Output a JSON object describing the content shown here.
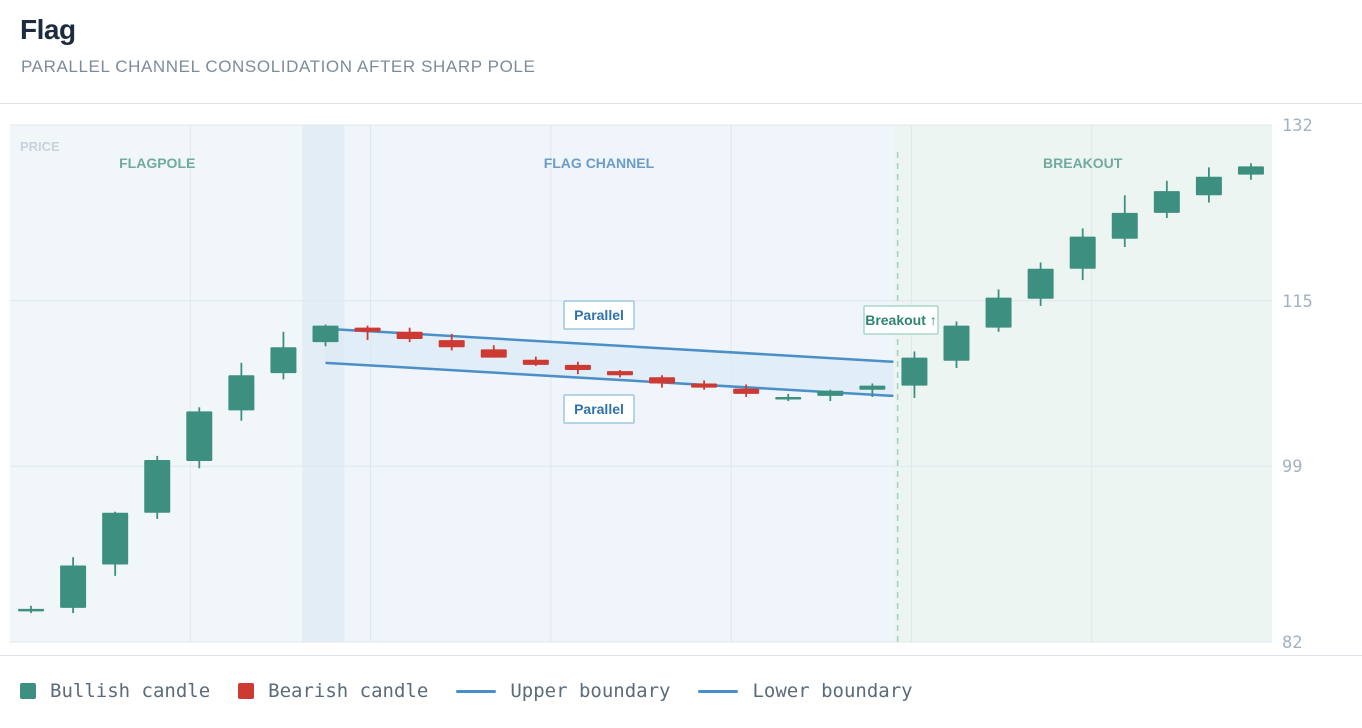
{
  "header": {
    "title": "Flag",
    "subtitle": "PARALLEL CHANNEL CONSOLIDATION AFTER SHARP POLE"
  },
  "colors": {
    "bullish": "#3d9080",
    "bearish": "#cc3a33",
    "boundary": "#4a8fc8",
    "grid": "#dfe7ee"
  },
  "legend": {
    "bullish": "Bullish candle",
    "bearish": "Bearish candle",
    "upper": "Upper boundary",
    "lower": "Lower boundary"
  },
  "chart_data": {
    "type": "candlestick",
    "y_axis_label": "PRICE",
    "yticks": [
      132,
      115,
      99,
      82
    ],
    "ylim": [
      82,
      132
    ],
    "grid": true,
    "regions": [
      {
        "label": "FLAGPOLE",
        "from": 0,
        "to": 7
      },
      {
        "label": "FLAG CHANNEL",
        "from": 7,
        "to": 21
      },
      {
        "label": "BREAKOUT",
        "from": 21,
        "to": 30
      }
    ],
    "annotations": {
      "upper_label": "Parallel",
      "lower_label": "Parallel",
      "breakout_label": "Breakout ↑"
    },
    "channel": {
      "upper": {
        "x": [
          7,
          20.5
        ],
        "y": [
          112.3,
          109.1
        ]
      },
      "lower": {
        "x": [
          7,
          20.5
        ],
        "y": [
          109.0,
          105.8
        ]
      }
    },
    "breakout_index": 21,
    "candles": [
      {
        "o": 85.1,
        "h": 85.5,
        "l": 84.8,
        "c": 85.2
      },
      {
        "o": 85.3,
        "h": 90.2,
        "l": 84.8,
        "c": 89.4
      },
      {
        "o": 89.5,
        "h": 94.6,
        "l": 88.4,
        "c": 94.5
      },
      {
        "o": 94.5,
        "h": 100.0,
        "l": 93.9,
        "c": 99.6
      },
      {
        "o": 99.5,
        "h": 104.7,
        "l": 98.8,
        "c": 104.3
      },
      {
        "o": 104.4,
        "h": 109.0,
        "l": 103.4,
        "c": 107.8
      },
      {
        "o": 108.0,
        "h": 112.0,
        "l": 107.4,
        "c": 110.5
      },
      {
        "o": 111.0,
        "h": 112.7,
        "l": 110.6,
        "c": 112.6
      },
      {
        "o": 112.4,
        "h": 112.6,
        "l": 111.2,
        "c": 112.0
      },
      {
        "o": 112.0,
        "h": 112.4,
        "l": 111.0,
        "c": 111.3
      },
      {
        "o": 111.2,
        "h": 111.8,
        "l": 110.2,
        "c": 110.5
      },
      {
        "o": 110.3,
        "h": 110.7,
        "l": 109.5,
        "c": 109.5
      },
      {
        "o": 109.3,
        "h": 109.6,
        "l": 108.7,
        "c": 108.8
      },
      {
        "o": 108.8,
        "h": 109.1,
        "l": 107.9,
        "c": 108.3
      },
      {
        "o": 108.2,
        "h": 108.3,
        "l": 107.6,
        "c": 107.8
      },
      {
        "o": 107.6,
        "h": 107.8,
        "l": 106.6,
        "c": 107.0
      },
      {
        "o": 107.0,
        "h": 107.3,
        "l": 106.4,
        "c": 106.6
      },
      {
        "o": 106.5,
        "h": 106.9,
        "l": 105.7,
        "c": 106.0
      },
      {
        "o": 105.6,
        "h": 106.0,
        "l": 105.3,
        "c": 105.7
      },
      {
        "o": 105.8,
        "h": 106.4,
        "l": 105.3,
        "c": 106.3
      },
      {
        "o": 106.4,
        "h": 107.0,
        "l": 105.7,
        "c": 106.8
      },
      {
        "o": 106.8,
        "h": 110.1,
        "l": 105.6,
        "c": 109.5
      },
      {
        "o": 109.2,
        "h": 113.0,
        "l": 108.5,
        "c": 112.6
      },
      {
        "o": 112.4,
        "h": 116.1,
        "l": 112.0,
        "c": 115.3
      },
      {
        "o": 115.2,
        "h": 118.7,
        "l": 114.5,
        "c": 118.1
      },
      {
        "o": 118.1,
        "h": 122.0,
        "l": 117.0,
        "c": 121.2
      },
      {
        "o": 121.0,
        "h": 125.2,
        "l": 120.2,
        "c": 123.5
      },
      {
        "o": 123.5,
        "h": 126.6,
        "l": 123.0,
        "c": 125.6
      },
      {
        "o": 125.2,
        "h": 127.9,
        "l": 124.5,
        "c": 127.0
      },
      {
        "o": 127.2,
        "h": 128.3,
        "l": 126.7,
        "c": 128.0
      }
    ]
  }
}
